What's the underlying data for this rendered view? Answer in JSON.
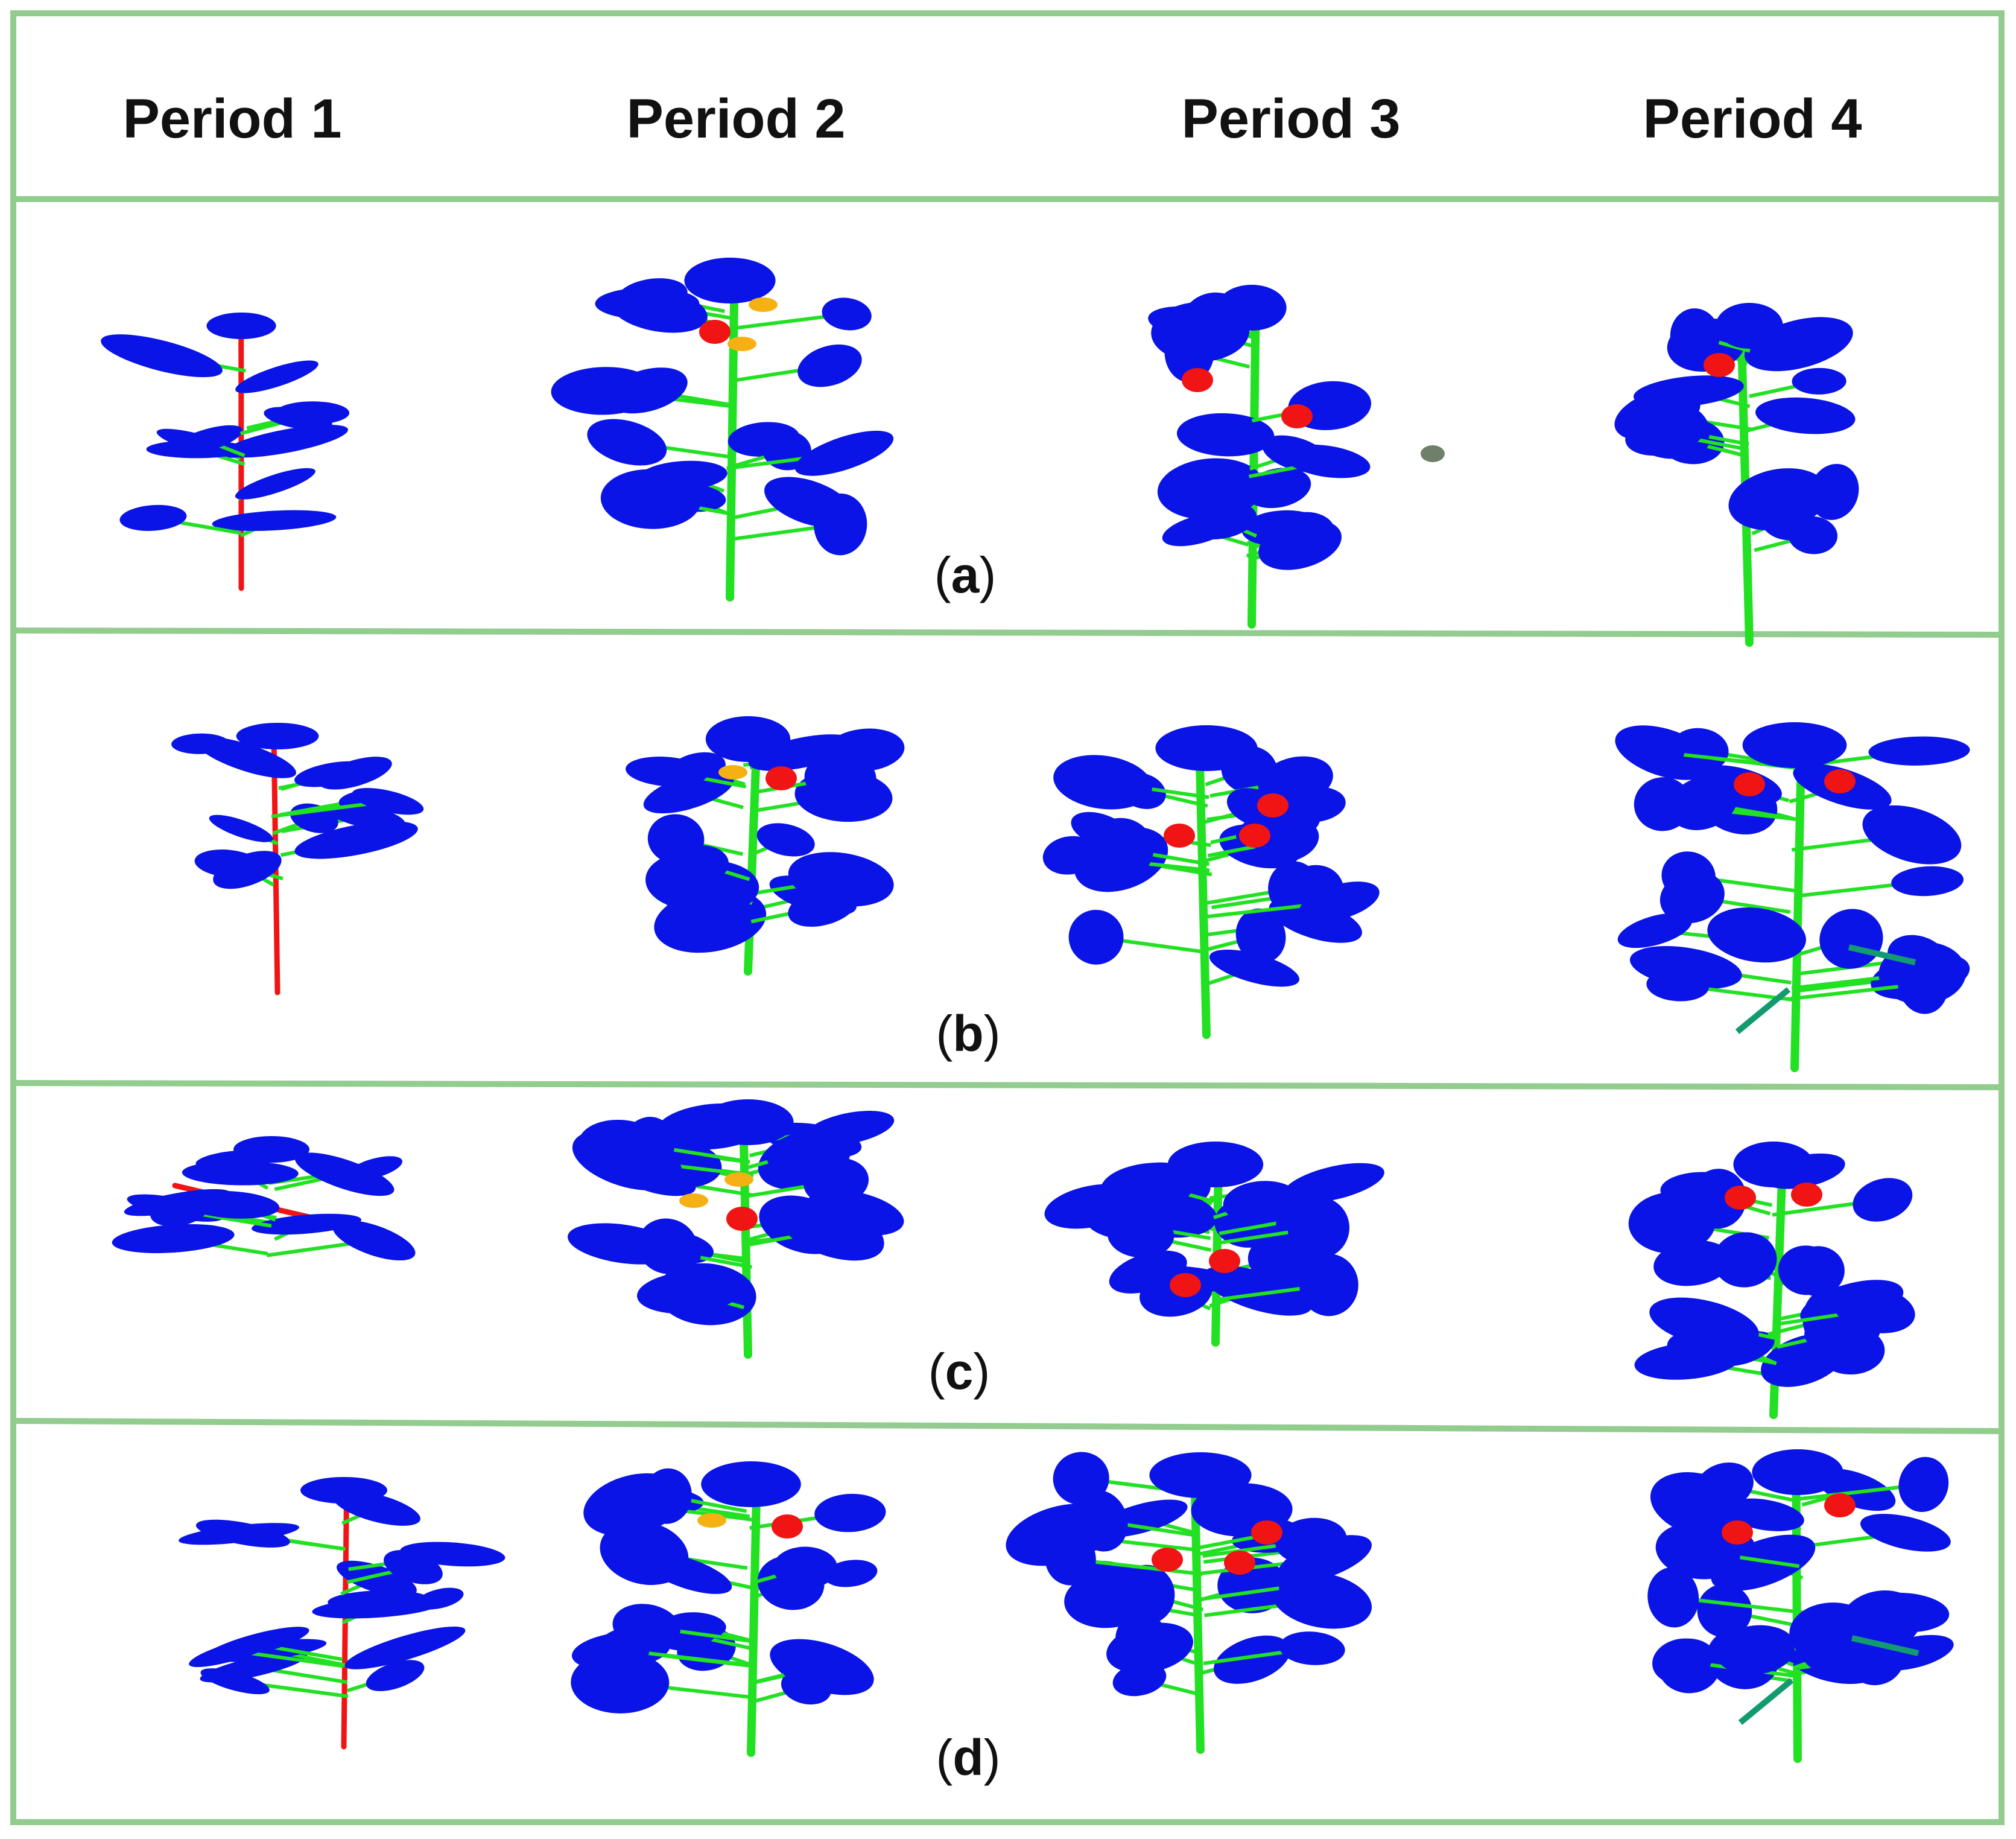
{
  "header": {
    "periods": [
      "Period 1",
      "Period 2",
      "Period 3",
      "Period 4"
    ]
  },
  "rows": [
    {
      "label": "a"
    },
    {
      "label": "b"
    },
    {
      "label": "c"
    },
    {
      "label": "d"
    }
  ],
  "colors": {
    "frame": "#93cc8f",
    "leaf": "#0a14e6",
    "stem_young": "#f01414",
    "stem": "#22e022",
    "branch_dark": "#139a70",
    "fruit": "#f01414",
    "flower": "#f5b014"
  }
}
